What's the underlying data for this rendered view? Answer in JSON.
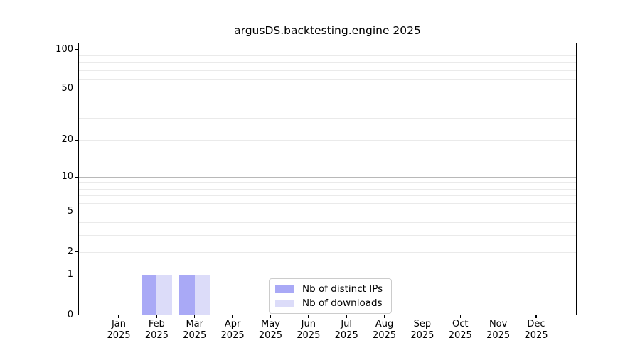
{
  "chart_data": {
    "type": "bar",
    "title": "argusDS.backtesting.engine 2025",
    "categories": [
      "Jan",
      "Feb",
      "Mar",
      "Apr",
      "May",
      "Jun",
      "Jul",
      "Aug",
      "Sep",
      "Oct",
      "Nov",
      "Dec"
    ],
    "x_year": "2025",
    "series": [
      {
        "name": "Nb of distinct IPs",
        "color": "#a9a9f6",
        "values": [
          0,
          1,
          1,
          0,
          0,
          0,
          0,
          0,
          0,
          0,
          0,
          0
        ]
      },
      {
        "name": "Nb of downloads",
        "color": "#dcdcf9",
        "values": [
          0,
          1,
          1,
          0,
          0,
          0,
          0,
          0,
          0,
          0,
          0,
          0
        ]
      }
    ],
    "y_axis": {
      "scale": "log1p",
      "tick_labels": [
        "0",
        "1",
        "2",
        "5",
        "10",
        "20",
        "50",
        "100"
      ],
      "tick_values": [
        0,
        1,
        2,
        5,
        10,
        20,
        50,
        100
      ],
      "major_grid_values": [
        1,
        10,
        100
      ],
      "minor_grid_values": [
        2,
        3,
        4,
        5,
        6,
        7,
        8,
        9,
        20,
        30,
        40,
        50,
        60,
        70,
        80,
        90
      ],
      "ylim": [
        0,
        113
      ]
    },
    "legend": {
      "position": "lower-center",
      "entries": [
        "Nb of distinct IPs",
        "Nb of downloads"
      ]
    },
    "grid": "horizontal",
    "colors": {
      "bar_distinct_ips": "#a9a9f6",
      "bar_downloads": "#dcdcf9",
      "major_grid": "#b8b8b8",
      "minor_grid": "#eaeaea",
      "axis": "#000000",
      "text": "#000000",
      "legend_border": "#cccccc",
      "background": "#ffffff"
    }
  }
}
